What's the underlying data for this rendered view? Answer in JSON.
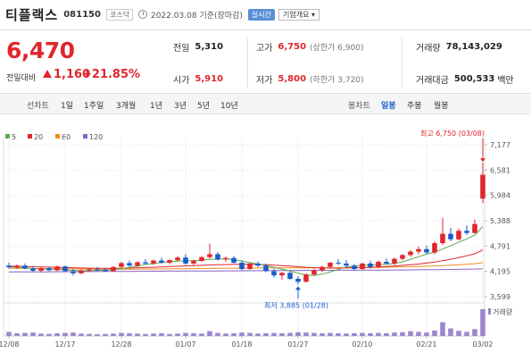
{
  "header": {
    "name": "티플랙스",
    "code": "081150",
    "market": "코스닥",
    "date": "2022.03.08 기준(장마감)",
    "realtime": "실시간",
    "company_info": "기업개요 ▾"
  },
  "price": {
    "current": "6,470",
    "change_label": "전일대비",
    "change": "1,160",
    "change_pct": "+21.85%"
  },
  "quote": {
    "prev_close": {
      "label": "전일",
      "value": "5,310"
    },
    "high": {
      "label": "고가",
      "value": "6,750",
      "sub": "(상한가 6,900)"
    },
    "volume": {
      "label": "거래량",
      "value": "78,143,029"
    },
    "open": {
      "label": "시가",
      "value": "5,910"
    },
    "low": {
      "label": "저가",
      "value": "5,800",
      "sub": "(하한가 3,720)"
    },
    "amount": {
      "label": "거래대금",
      "value": "500,533",
      "unit": "백만"
    }
  },
  "toolbar": {
    "line_label": "선차트",
    "periods": [
      "1일",
      "1주일",
      "3개월",
      "1년",
      "3년",
      "5년",
      "10년"
    ],
    "candle_label": "봉차트",
    "candle_periods": [
      "일봉",
      "주봉",
      "월봉"
    ],
    "active_candle": "일봉"
  },
  "chart_data": {
    "type": "candlestick",
    "legend": [
      {
        "name": "5",
        "color": "#5aa84a"
      },
      {
        "name": "20",
        "color": "#e0262d"
      },
      {
        "name": "60",
        "color": "#f08c1e"
      },
      {
        "name": "120",
        "color": "#8a63c8"
      }
    ],
    "y_ticks": [
      7177,
      6581,
      5984,
      5388,
      4791,
      4195,
      3599
    ],
    "y_tick_labels": [
      "7,177",
      "6,581",
      "5,984",
      "5,388",
      "4,791",
      "4,195",
      "3,599"
    ],
    "ylim": [
      3599,
      7177
    ],
    "x_ticks": [
      "12/08",
      "12/17",
      "12/28",
      "01/07",
      "01/18",
      "01/27",
      "02/10",
      "02/21",
      "03/02"
    ],
    "x_tick_index": [
      0,
      7,
      14,
      22,
      29,
      36,
      44,
      52,
      59
    ],
    "max_annotation": "최고 6,750 (03/08)",
    "min_annotation": "최저 3,885 (01/28)",
    "volume_label": "거래량",
    "candles": [
      [
        4330,
        4400,
        4260,
        4290
      ],
      [
        4290,
        4360,
        4250,
        4330
      ],
      [
        4330,
        4380,
        4240,
        4260
      ],
      [
        4260,
        4320,
        4180,
        4210
      ],
      [
        4210,
        4290,
        4170,
        4270
      ],
      [
        4270,
        4300,
        4200,
        4220
      ],
      [
        4220,
        4330,
        4200,
        4310
      ],
      [
        4310,
        4330,
        4190,
        4200
      ],
      [
        4200,
        4260,
        4100,
        4150
      ],
      [
        4150,
        4240,
        4130,
        4220
      ],
      [
        4220,
        4270,
        4180,
        4240
      ],
      [
        4240,
        4300,
        4200,
        4230
      ],
      [
        4230,
        4280,
        4180,
        4200
      ],
      [
        4200,
        4320,
        4190,
        4300
      ],
      [
        4300,
        4420,
        4280,
        4390
      ],
      [
        4390,
        4450,
        4310,
        4330
      ],
      [
        4330,
        4430,
        4300,
        4410
      ],
      [
        4410,
        4480,
        4360,
        4380
      ],
      [
        4380,
        4470,
        4350,
        4450
      ],
      [
        4450,
        4520,
        4380,
        4400
      ],
      [
        4400,
        4480,
        4360,
        4460
      ],
      [
        4460,
        4560,
        4420,
        4520
      ],
      [
        4520,
        4600,
        4350,
        4380
      ],
      [
        4380,
        4470,
        4340,
        4440
      ],
      [
        4440,
        4560,
        4420,
        4530
      ],
      [
        4530,
        4850,
        4500,
        4600
      ],
      [
        4600,
        4650,
        4450,
        4480
      ],
      [
        4480,
        4550,
        4420,
        4510
      ],
      [
        4510,
        4560,
        4380,
        4400
      ],
      [
        4400,
        4450,
        4220,
        4250
      ],
      [
        4250,
        4400,
        4230,
        4380
      ],
      [
        4380,
        4430,
        4300,
        4330
      ],
      [
        4330,
        4380,
        4180,
        4200
      ],
      [
        4200,
        4260,
        4050,
        4100
      ],
      [
        4100,
        4180,
        4000,
        4160
      ],
      [
        4160,
        4200,
        3990,
        4020
      ],
      [
        4020,
        4080,
        3885,
        3950
      ],
      [
        3950,
        4150,
        3930,
        4120
      ],
      [
        4120,
        4260,
        4090,
        4220
      ],
      [
        4220,
        4330,
        4180,
        4300
      ],
      [
        4300,
        4420,
        4260,
        4400
      ],
      [
        4400,
        4480,
        4340,
        4380
      ],
      [
        4380,
        4460,
        4300,
        4330
      ],
      [
        4330,
        4370,
        4220,
        4250
      ],
      [
        4250,
        4400,
        4230,
        4380
      ],
      [
        4380,
        4450,
        4260,
        4300
      ],
      [
        4300,
        4450,
        4270,
        4420
      ],
      [
        4420,
        4500,
        4350,
        4380
      ],
      [
        4380,
        4520,
        4340,
        4490
      ],
      [
        4490,
        4600,
        4460,
        4580
      ],
      [
        4580,
        4700,
        4540,
        4660
      ],
      [
        4660,
        4780,
        4600,
        4720
      ],
      [
        4720,
        4800,
        4600,
        4640
      ],
      [
        4640,
        4900,
        4600,
        4860
      ],
      [
        4860,
        5450,
        4820,
        5080
      ],
      [
        5080,
        5220,
        4900,
        4950
      ],
      [
        4950,
        5200,
        4920,
        5150
      ],
      [
        5150,
        5280,
        5050,
        5100
      ],
      [
        5100,
        5420,
        5080,
        5310
      ],
      [
        5910,
        6750,
        5800,
        6470
      ]
    ],
    "ma5": [
      4300,
      4290,
      4280,
      4260,
      4250,
      4250,
      4240,
      4230,
      4220,
      4210,
      4210,
      4220,
      4225,
      4235,
      4260,
      4290,
      4320,
      4350,
      4380,
      4400,
      4420,
      4440,
      4440,
      4450,
      4460,
      4480,
      4480,
      4490,
      4470,
      4440,
      4400,
      4370,
      4330,
      4290,
      4250,
      4200,
      4150,
      4110,
      4100,
      4130,
      4180,
      4240,
      4300,
      4320,
      4340,
      4340,
      4350,
      4360,
      4380,
      4420,
      4480,
      4540,
      4600,
      4650,
      4720,
      4800,
      4880,
      4960,
      5050,
      5250
    ],
    "ma20": [
      4320,
      4315,
      4310,
      4305,
      4300,
      4295,
      4290,
      4285,
      4280,
      4275,
      4270,
      4268,
      4266,
      4265,
      4268,
      4272,
      4278,
      4285,
      4292,
      4300,
      4308,
      4315,
      4322,
      4330,
      4338,
      4345,
      4350,
      4355,
      4358,
      4360,
      4358,
      4355,
      4350,
      4340,
      4330,
      4318,
      4305,
      4292,
      4282,
      4275,
      4272,
      4272,
      4275,
      4280,
      4285,
      4292,
      4300,
      4310,
      4320,
      4335,
      4350,
      4368,
      4390,
      4415,
      4445,
      4480,
      4520,
      4560,
      4610,
      4700
    ],
    "ma60": [
      4270,
      4268,
      4266,
      4264,
      4262,
      4260,
      4258,
      4256,
      4254,
      4252,
      4250,
      4249,
      4248,
      4247,
      4247,
      4247,
      4248,
      4249,
      4250,
      4252,
      4254,
      4256,
      4258,
      4260,
      4262,
      4264,
      4266,
      4268,
      4270,
      4272,
      4273,
      4274,
      4275,
      4276,
      4277,
      4277,
      4277,
      4277,
      4277,
      4278,
      4279,
      4280,
      4282,
      4284,
      4286,
      4288,
      4291,
      4294,
      4297,
      4301,
      4305,
      4310,
      4316,
      4322,
      4330,
      4340,
      4350,
      4362,
      4375,
      4400
    ],
    "ma120": [
      4180,
      4181,
      4182,
      4183,
      4184,
      4185,
      4186,
      4187,
      4188,
      4189,
      4190,
      4191,
      4192,
      4193,
      4194,
      4195,
      4196,
      4197,
      4198,
      4199,
      4200,
      4201,
      4202,
      4203,
      4204,
      4205,
      4206,
      4207,
      4208,
      4209,
      4210,
      4211,
      4212,
      4213,
      4214,
      4215,
      4216,
      4217,
      4218,
      4219,
      4220,
      4221,
      4222,
      4223,
      4224,
      4225,
      4226,
      4227,
      4228,
      4229,
      4230,
      4232,
      4234,
      4236,
      4238,
      4240,
      4243,
      4246,
      4250,
      4256
    ],
    "volume": [
      12,
      8,
      9,
      10,
      7,
      6,
      8,
      9,
      10,
      7,
      6,
      5,
      6,
      7,
      9,
      8,
      7,
      6,
      7,
      8,
      6,
      7,
      9,
      8,
      7,
      14,
      9,
      7,
      8,
      10,
      9,
      7,
      8,
      9,
      8,
      9,
      11,
      10,
      9,
      8,
      9,
      8,
      7,
      8,
      9,
      8,
      9,
      8,
      10,
      11,
      14,
      12,
      10,
      16,
      40,
      22,
      15,
      12,
      20,
      78
    ]
  }
}
